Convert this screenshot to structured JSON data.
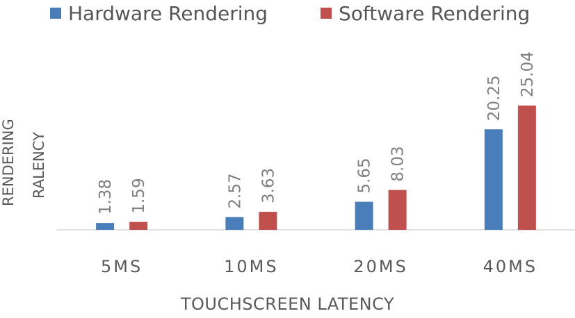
{
  "legend": {
    "series_0": "Hardware Rendering",
    "series_1": "Software Rendering"
  },
  "axes": {
    "ylabel_line1": "RENDERING",
    "ylabel_line2": "RALENCY",
    "xlabel": "TOUCHSCREEN LATENCY"
  },
  "colors": {
    "hardware": "#4a7ebb",
    "software": "#c0504d",
    "axis": "#d9d9d9",
    "label": "#808080"
  },
  "chart_data": {
    "type": "bar",
    "title": "",
    "xlabel": "TOUCHSCREEN LATENCY",
    "ylabel": "RENDERING RALENCY",
    "categories": [
      "5MS",
      "10MS",
      "20MS",
      "40MS"
    ],
    "series": [
      {
        "name": "Hardware Rendering",
        "values": [
          1.38,
          2.57,
          5.65,
          20.25
        ]
      },
      {
        "name": "Software Rendering",
        "values": [
          1.59,
          3.63,
          8.03,
          25.04
        ]
      }
    ],
    "ylim": [
      0,
      25.04
    ],
    "grid": false,
    "legend_position": "top"
  }
}
